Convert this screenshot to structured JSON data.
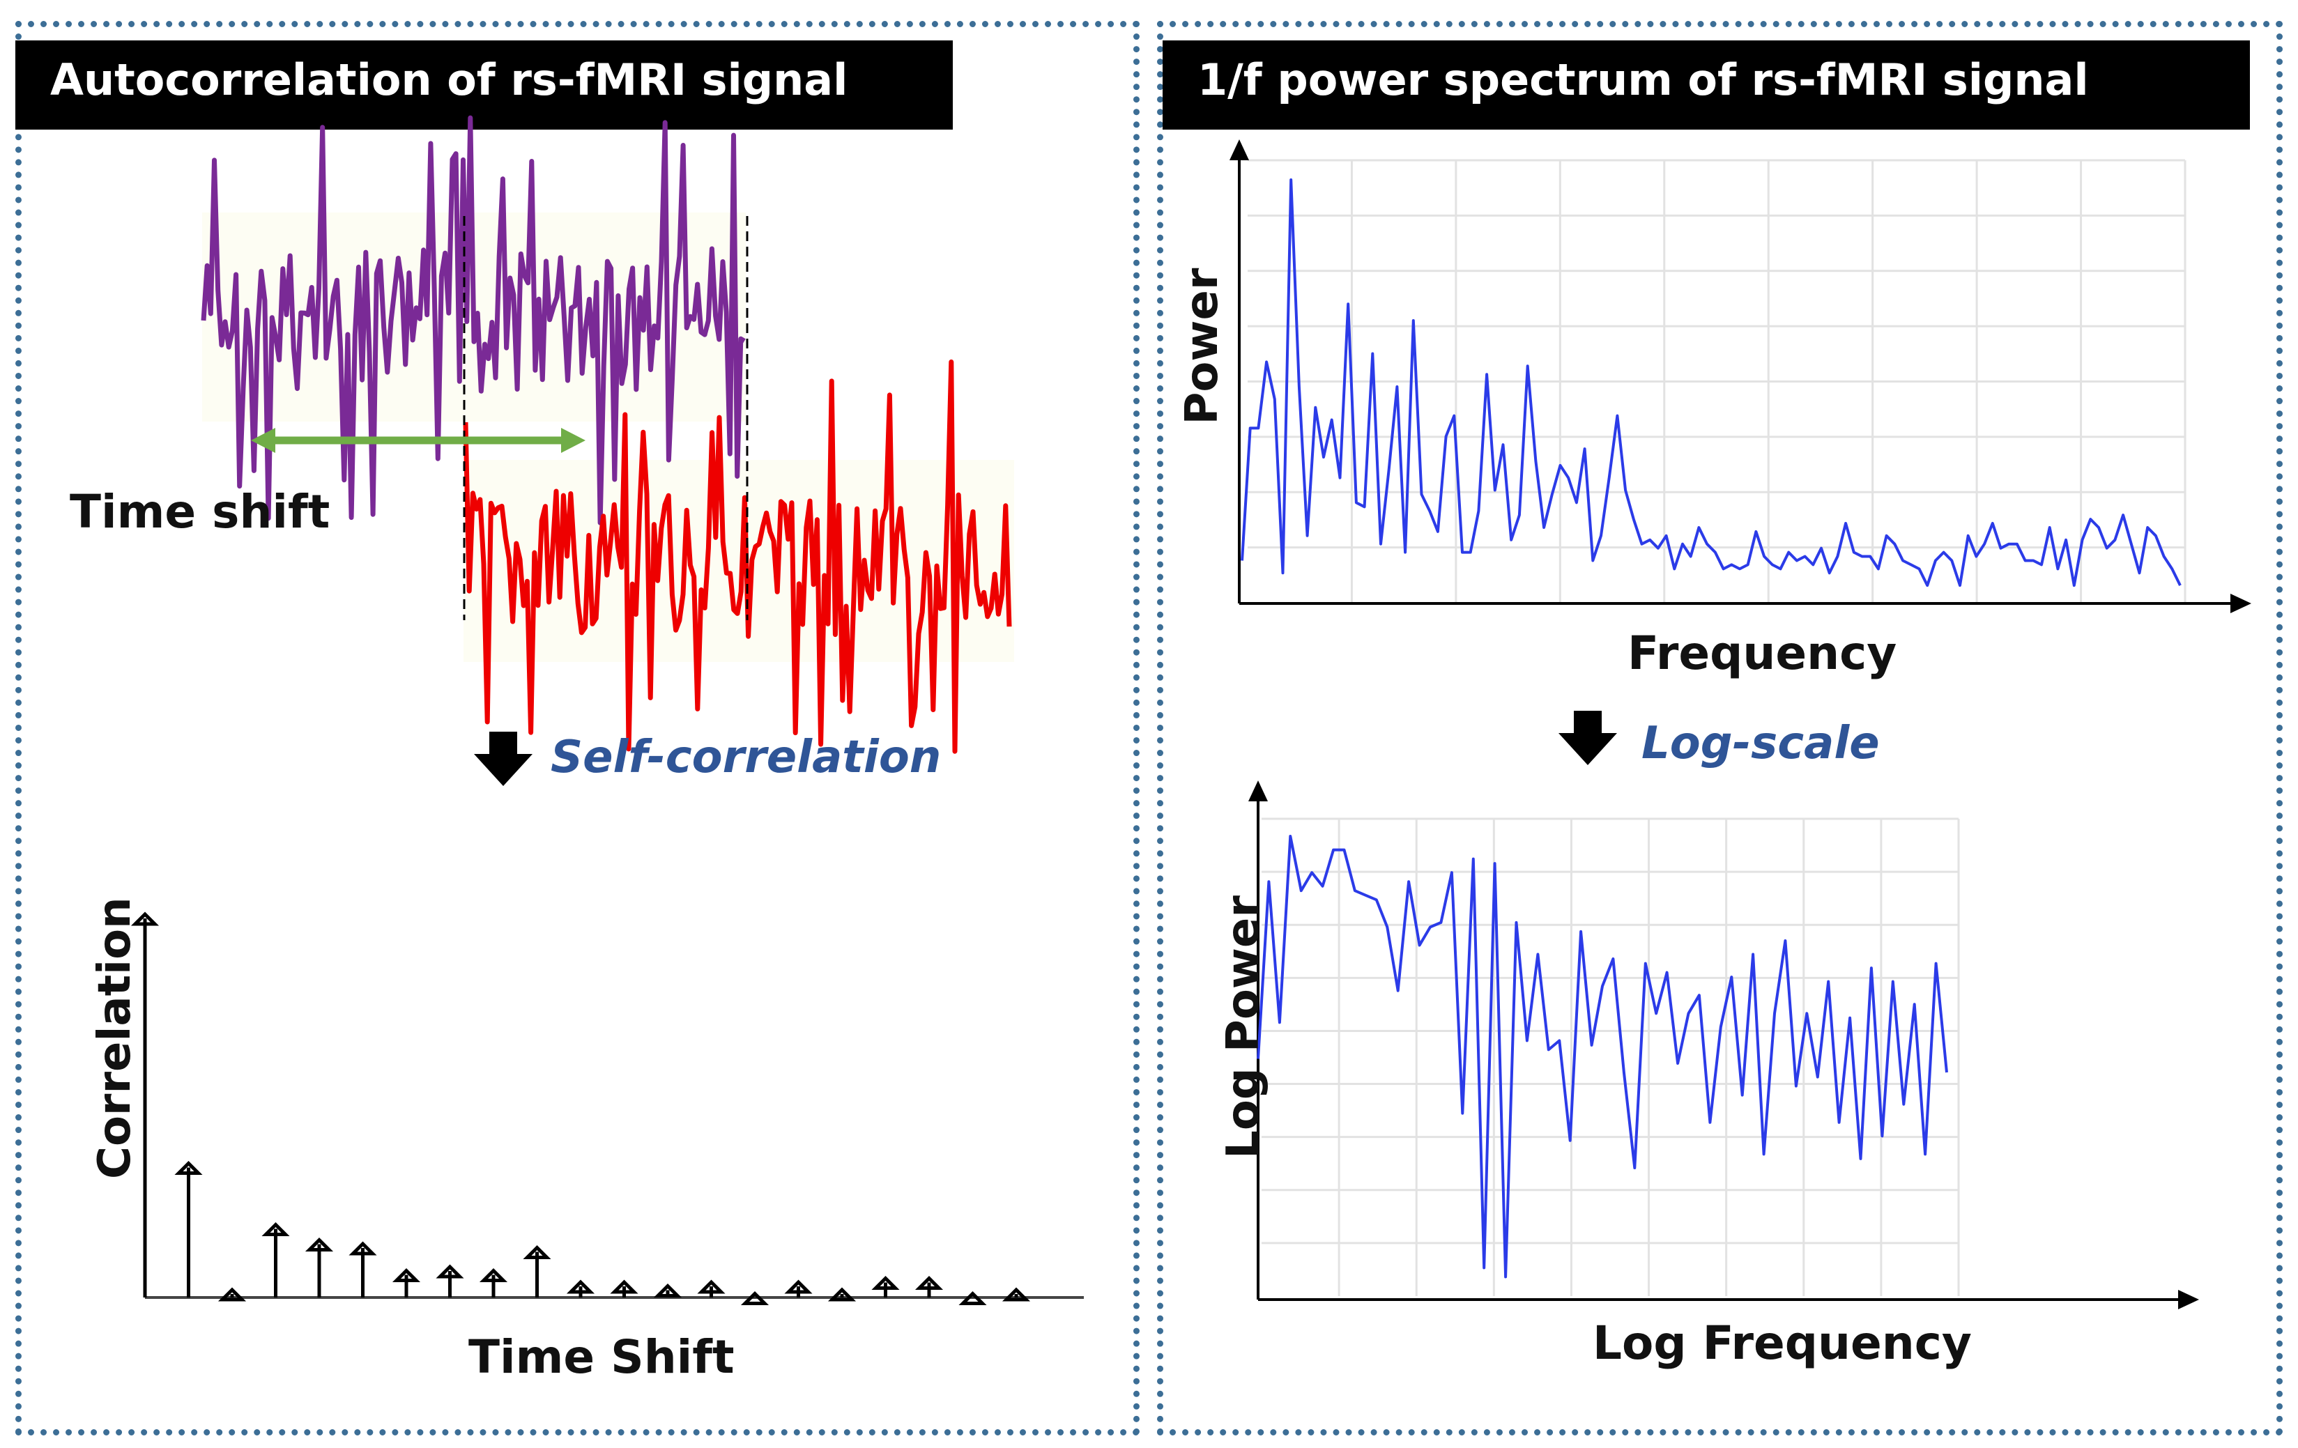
{
  "left_panel": {
    "title": "Autocorrelation  of rs-fMRI  signal",
    "time_shift_label": "Time shift",
    "transform_note": "Self-correlation",
    "y_label": "Correlation",
    "x_label": "Time Shift",
    "signal_color": "#7a2a96",
    "shifted_signal_color": "#ee0000",
    "shift_arrow_color": "#70ad47"
  },
  "right_panel": {
    "title": "1/f power spectrum  of rs-fMRI  signal",
    "top_y_label": "Power",
    "top_x_label": "Frequency",
    "transform_note": "Log-scale",
    "bottom_y_label": "Log Power",
    "bottom_x_label": "Log Frequency",
    "line_color": "#2b3be8"
  },
  "chart_data": [
    {
      "type": "bar",
      "xlabel": "Time Shift",
      "ylabel": "Correlation",
      "values": [
        1.0,
        0.35,
        0.02,
        0.19,
        0.15,
        0.14,
        0.07,
        0.08,
        0.07,
        0.13,
        0.04,
        0.04,
        0.03,
        0.04,
        0.01,
        0.04,
        0.02,
        0.05,
        0.05,
        0.01,
        0.02
      ]
    },
    {
      "type": "line",
      "xlabel": "Frequency",
      "ylabel": "Power",
      "values": [
        0.08,
        0.4,
        0.4,
        0.56,
        0.47,
        0.05,
        1.0,
        0.5,
        0.14,
        0.45,
        0.33,
        0.42,
        0.28,
        0.7,
        0.22,
        0.21,
        0.58,
        0.12,
        0.3,
        0.5,
        0.1,
        0.66,
        0.24,
        0.2,
        0.15,
        0.38,
        0.43,
        0.1,
        0.1,
        0.2,
        0.53,
        0.25,
        0.36,
        0.13,
        0.19,
        0.55,
        0.32,
        0.16,
        0.24,
        0.31,
        0.28,
        0.22,
        0.35,
        0.08,
        0.14,
        0.28,
        0.43,
        0.25,
        0.18,
        0.12,
        0.13,
        0.11,
        0.14,
        0.06,
        0.12,
        0.09,
        0.16,
        0.12,
        0.1,
        0.06,
        0.07,
        0.06,
        0.07,
        0.15,
        0.09,
        0.07,
        0.06,
        0.1,
        0.08,
        0.09,
        0.07,
        0.11,
        0.05,
        0.09,
        0.17,
        0.1,
        0.09,
        0.09,
        0.06,
        0.14,
        0.12,
        0.08,
        0.07,
        0.06,
        0.02,
        0.08,
        0.1,
        0.08,
        0.02,
        0.14,
        0.09,
        0.12,
        0.17,
        0.11,
        0.12,
        0.12,
        0.08,
        0.08,
        0.07,
        0.16,
        0.06,
        0.13,
        0.02,
        0.13,
        0.18,
        0.16,
        0.11,
        0.13,
        0.19,
        0.12,
        0.05,
        0.16,
        0.14,
        0.09,
        0.06,
        0.02
      ]
    },
    {
      "type": "line",
      "xlabel": "Log Frequency",
      "ylabel": "Log Power",
      "values": [
        0.51,
        0.9,
        0.59,
        1.0,
        0.88,
        0.92,
        0.89,
        0.97,
        0.97,
        0.88,
        0.87,
        0.86,
        0.8,
        0.66,
        0.9,
        0.76,
        0.8,
        0.81,
        0.92,
        0.39,
        0.95,
        0.05,
        0.94,
        0.03,
        0.81,
        0.55,
        0.74,
        0.53,
        0.55,
        0.33,
        0.79,
        0.54,
        0.67,
        0.73,
        0.48,
        0.27,
        0.72,
        0.61,
        0.7,
        0.5,
        0.61,
        0.65,
        0.37,
        0.58,
        0.69,
        0.43,
        0.74,
        0.3,
        0.61,
        0.77,
        0.45,
        0.61,
        0.47,
        0.68,
        0.37,
        0.6,
        0.29,
        0.71,
        0.34,
        0.68,
        0.41,
        0.63,
        0.3,
        0.72,
        0.48
      ]
    }
  ]
}
